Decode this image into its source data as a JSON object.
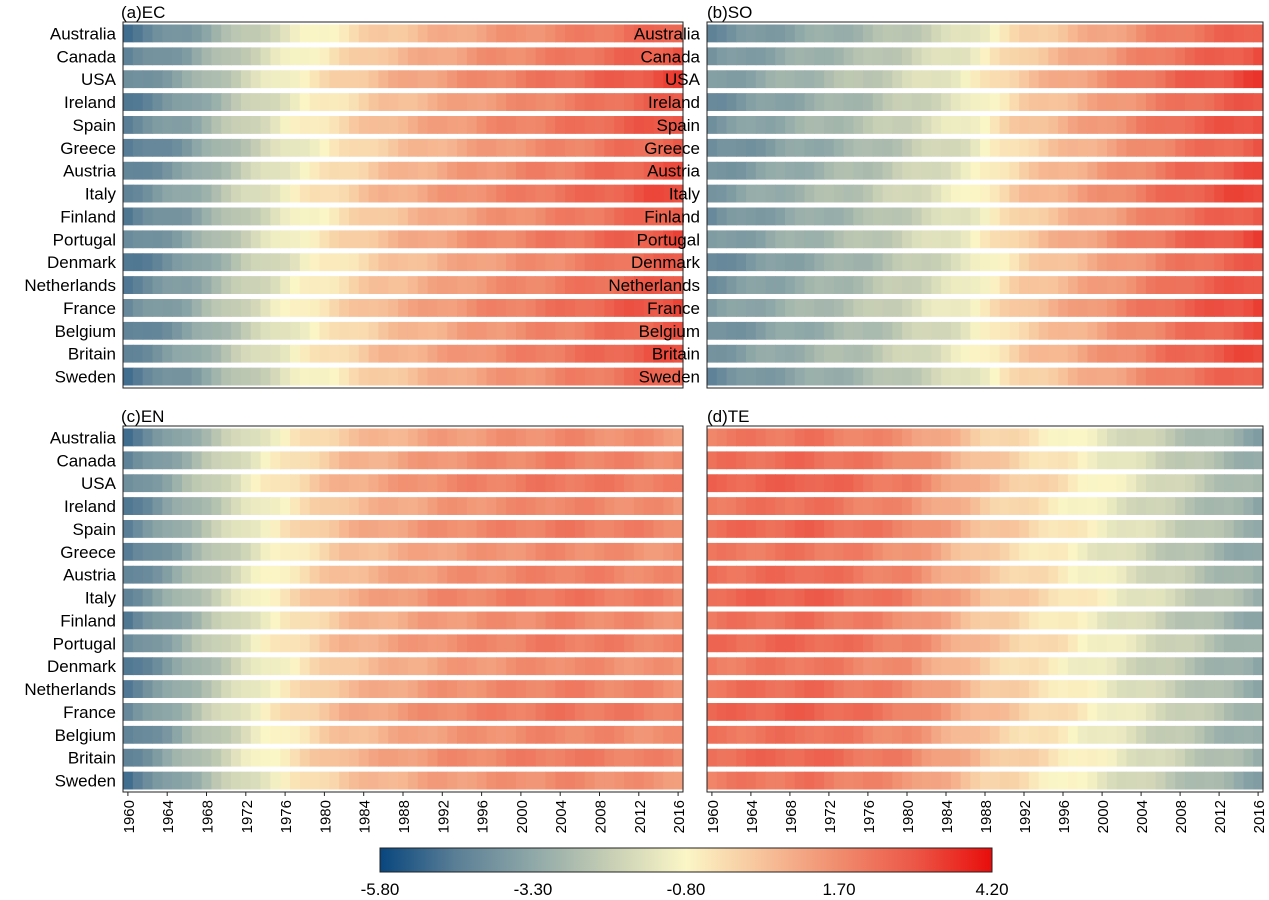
{
  "chart_data": [
    {
      "type": "heatmap",
      "panel": "(a)EC",
      "title": "(a)EC",
      "countries": [
        "Australia",
        "Canada",
        "USA",
        "Ireland",
        "Spain",
        "Greece",
        "Austria",
        "Italy",
        "Finland",
        "Portugal",
        "Denmark",
        "Netherlands",
        "France",
        "Belgium",
        "Britain",
        "Sweden"
      ],
      "x_start": 1960,
      "x_end": 2016,
      "x_ticks": [],
      "keypoints": [
        {
          "year": 1960,
          "value": -4.5
        },
        {
          "year": 1966,
          "value": -3.5
        },
        {
          "year": 1972,
          "value": -2.0
        },
        {
          "year": 1978,
          "value": -0.8
        },
        {
          "year": 1986,
          "value": 0.5
        },
        {
          "year": 1996,
          "value": 1.5
        },
        {
          "year": 2006,
          "value": 2.2
        },
        {
          "year": 2016,
          "value": 3.0
        }
      ]
    },
    {
      "type": "heatmap",
      "panel": "(b)SO",
      "title": "(b)SO",
      "countries": [
        "Australia",
        "Canada",
        "USA",
        "Ireland",
        "Spain",
        "Greece",
        "Austria",
        "Italy",
        "Finland",
        "Portugal",
        "Denmark",
        "Netherlands",
        "France",
        "Belgium",
        "Britain",
        "Sweden"
      ],
      "x_start": 1960,
      "x_end": 2016,
      "x_ticks": [],
      "keypoints": [
        {
          "year": 1960,
          "value": -4.0
        },
        {
          "year": 1968,
          "value": -3.2
        },
        {
          "year": 1976,
          "value": -2.5
        },
        {
          "year": 1986,
          "value": -1.2
        },
        {
          "year": 1992,
          "value": 0.2
        },
        {
          "year": 2000,
          "value": 1.3
        },
        {
          "year": 2008,
          "value": 2.4
        },
        {
          "year": 2016,
          "value": 3.1
        }
      ]
    },
    {
      "type": "heatmap",
      "panel": "(c)EN",
      "title": "(c)EN",
      "countries": [
        "Australia",
        "Canada",
        "USA",
        "Ireland",
        "Spain",
        "Greece",
        "Austria",
        "Italy",
        "Finland",
        "Portugal",
        "Denmark",
        "Netherlands",
        "France",
        "Belgium",
        "Britain",
        "Sweden"
      ],
      "x_start": 1960,
      "x_end": 2016,
      "x_ticks": [
        "1960",
        "1964",
        "1968",
        "1972",
        "1976",
        "1980",
        "1984",
        "1988",
        "1992",
        "1996",
        "2000",
        "2004",
        "2008",
        "2012",
        "2016"
      ],
      "keypoints": [
        {
          "year": 1960,
          "value": -4.5
        },
        {
          "year": 1964,
          "value": -3.5
        },
        {
          "year": 1968,
          "value": -2.4
        },
        {
          "year": 1974,
          "value": -0.9
        },
        {
          "year": 1982,
          "value": 0.6
        },
        {
          "year": 1992,
          "value": 1.5
        },
        {
          "year": 2004,
          "value": 2.0
        },
        {
          "year": 2016,
          "value": 1.7
        }
      ]
    },
    {
      "type": "heatmap",
      "panel": "(d)TE",
      "title": "(d)TE",
      "countries": [],
      "x_start": 1960,
      "x_end": 2016,
      "x_ticks": [
        "1960",
        "1964",
        "1968",
        "1972",
        "1976",
        "1980",
        "1984",
        "1988",
        "1992",
        "1996",
        "2000",
        "2004",
        "2008",
        "2012",
        "2016"
      ],
      "keypoints": [
        {
          "year": 1960,
          "value": 2.3
        },
        {
          "year": 1970,
          "value": 2.5
        },
        {
          "year": 1980,
          "value": 1.8
        },
        {
          "year": 1988,
          "value": 0.4
        },
        {
          "year": 1996,
          "value": -0.5
        },
        {
          "year": 2004,
          "value": -1.6
        },
        {
          "year": 2010,
          "value": -2.4
        },
        {
          "year": 2016,
          "value": -3.2
        }
      ]
    }
  ],
  "colorbar": {
    "min": -5.8,
    "max": 4.2,
    "stops": [
      {
        "value": -5.8,
        "color": "#08467e"
      },
      {
        "value": -4.55,
        "color": "#5b7f96"
      },
      {
        "value": -3.3,
        "color": "#8fa8a8"
      },
      {
        "value": -2.05,
        "color": "#c6ceb4"
      },
      {
        "value": -0.8,
        "color": "#fbf6c6"
      },
      {
        "value": 0.45,
        "color": "#f7c29a"
      },
      {
        "value": 1.7,
        "color": "#f08c6e"
      },
      {
        "value": 2.95,
        "color": "#ec5646"
      },
      {
        "value": 4.2,
        "color": "#e80d0b"
      }
    ],
    "tick_labels": [
      "-5.80",
      "-3.30",
      "-0.80",
      "1.70",
      "4.20"
    ]
  }
}
